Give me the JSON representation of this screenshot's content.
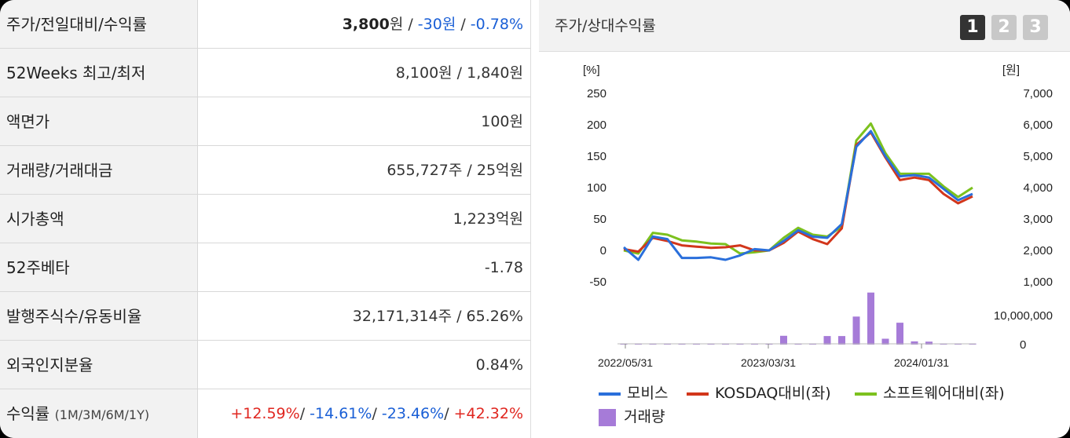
{
  "info": {
    "rows": [
      {
        "label": "주가/전일대비/수익률"
      },
      {
        "label": "52Weeks 최고/최저",
        "value": "8,100원 / 1,840원"
      },
      {
        "label": "액면가",
        "value": "100원"
      },
      {
        "label": "거래량/거래대금",
        "value": "655,727주 / 25억원"
      },
      {
        "label": "시가총액",
        "value": "1,223억원"
      },
      {
        "label": "52주베타",
        "value": "-1.78"
      },
      {
        "label": "발행주식수/유동비율",
        "value": "32,171,314주 / 65.26%"
      },
      {
        "label": "외국인지분율",
        "value": "0.84%"
      },
      {
        "label": "수익률",
        "label_sub": "(1M/3M/6M/1Y)"
      }
    ],
    "price": {
      "value": "3,800",
      "unit": "원",
      "sep1": " / ",
      "change": "-30원",
      "sep2": " / ",
      "rate": "-0.78%"
    },
    "returns": {
      "r1": "+12.59%",
      "r2": " -14.61%",
      "r3": " -23.46%",
      "r4": " +42.32%",
      "sep": "/"
    }
  },
  "chart_panel": {
    "title": "주가/상대수익률",
    "pages": [
      "1",
      "2",
      "3"
    ],
    "active_page": "1"
  },
  "legend": {
    "s1": "모비스",
    "s2": "KOSDAQ대비(좌)",
    "s3": "소프트웨어대비(좌)",
    "s4": "거래량"
  },
  "colors": {
    "mobis": "#2a6fdb",
    "kosdaq": "#d2361b",
    "software": "#7cc11e",
    "volume": "#a67bd8"
  },
  "chart_data": {
    "type": "line",
    "left_unit": "[%]",
    "right_unit": "[원]",
    "left_ticks": [
      "250",
      "200",
      "150",
      "100",
      "50",
      "0",
      "-50"
    ],
    "right_ticks": [
      "7,000",
      "6,000",
      "5,000",
      "4,000",
      "3,000",
      "2,000",
      "1,000"
    ],
    "volume_ticks": [
      "10,000,000",
      "0"
    ],
    "x_ticks": [
      "2022/05/31",
      "2023/03/31",
      "2024/01/31"
    ],
    "ylim": [
      -50,
      250
    ],
    "series": [
      {
        "name": "모비스",
        "values": [
          5,
          -15,
          22,
          18,
          -12,
          -12,
          -11,
          -15,
          -8,
          2,
          0,
          15,
          32,
          22,
          20,
          42,
          165,
          190,
          150,
          118,
          120,
          116,
          98,
          80,
          90
        ]
      },
      {
        "name": "KOSDAQ대비(좌)",
        "values": [
          2,
          -2,
          20,
          15,
          8,
          6,
          4,
          5,
          8,
          0,
          0,
          12,
          30,
          18,
          10,
          35,
          168,
          188,
          148,
          112,
          116,
          112,
          90,
          75,
          86
        ]
      },
      {
        "name": "소프트웨어대비(좌)",
        "values": [
          0,
          -5,
          28,
          25,
          16,
          14,
          11,
          10,
          -5,
          -3,
          0,
          20,
          36,
          25,
          22,
          38,
          175,
          202,
          155,
          122,
          122,
          122,
          102,
          85,
          100
        ]
      }
    ],
    "volume": {
      "name": "거래량",
      "values": [
        0,
        0.2,
        0,
        0,
        0,
        0,
        0,
        0,
        0,
        0.2,
        0,
        3.3,
        0.4,
        0.4,
        3.2,
        3.2,
        10.5,
        19.5,
        2.2,
        8.2,
        1.2,
        1.1,
        0.4,
        0.4,
        0.4
      ],
      "max": 20
    }
  }
}
